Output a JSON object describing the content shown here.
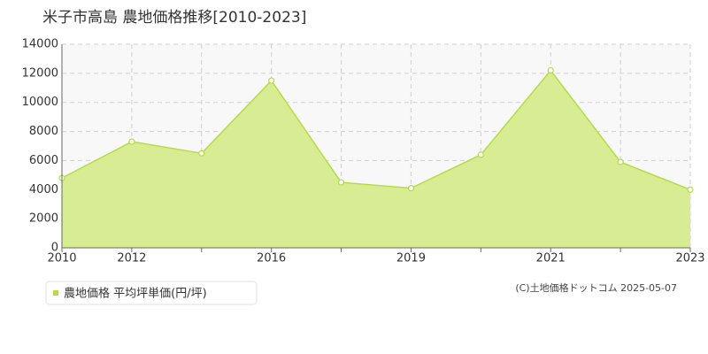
{
  "chart_data": {
    "type": "area",
    "title": "米子市高島 農地価格推移[2010-2023]",
    "categories": [
      "2010",
      "2012",
      null,
      "2016",
      null,
      "2019",
      null,
      "2021",
      null,
      "2023"
    ],
    "series": [
      {
        "name": "農地価格 平均坪単価(円/坪)",
        "color": "#b5dc45",
        "fill": "#d8ec93",
        "values": [
          4800,
          7300,
          6500,
          11500,
          4500,
          4100,
          6400,
          12200,
          5900,
          4000
        ]
      }
    ],
    "ylim": [
      0,
      14000
    ],
    "yticks": [
      0,
      2000,
      4000,
      6000,
      8000,
      10000,
      12000,
      14000
    ],
    "grid": true,
    "legend": "bottom-left",
    "source": "(C)土地価格ドットコム 2025-05-07"
  }
}
